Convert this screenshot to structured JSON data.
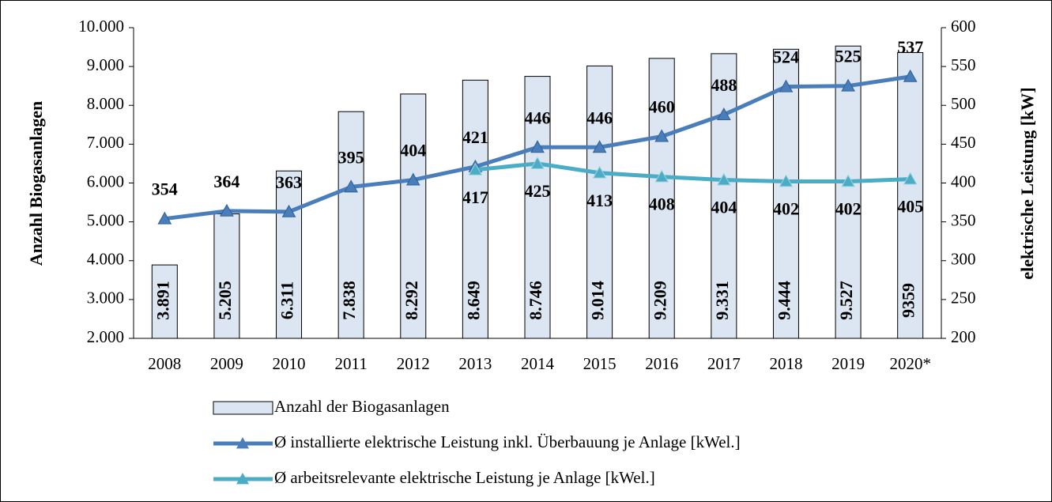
{
  "chart_data": {
    "type": "bar-line",
    "y_label": "Anzahl Biogasanlagen",
    "y2_label": "elektrische Leistung [kW]",
    "categories": [
      "2008",
      "2009",
      "2010",
      "2011",
      "2012",
      "2013",
      "2014",
      "2015",
      "2016",
      "2017",
      "2018",
      "2019",
      "2020*"
    ],
    "ylim": [
      2000,
      10000
    ],
    "yticks": [
      {
        "value": 2000,
        "label": "2.000"
      },
      {
        "value": 3000,
        "label": "3.000"
      },
      {
        "value": 4000,
        "label": "4.000"
      },
      {
        "value": 5000,
        "label": "5.000"
      },
      {
        "value": 6000,
        "label": "6.000"
      },
      {
        "value": 7000,
        "label": "7.000"
      },
      {
        "value": 8000,
        "label": "8.000"
      },
      {
        "value": 9000,
        "label": "9.000"
      },
      {
        "value": 10000,
        "label": "10.000"
      }
    ],
    "y2lim": [
      200,
      600
    ],
    "y2ticks": [
      200,
      250,
      300,
      350,
      400,
      450,
      500,
      550,
      600
    ],
    "series": [
      {
        "name": "Anzahl der Biogasanlagen",
        "type": "bar",
        "color": "#dce6f2",
        "values": [
          3891,
          5205,
          6311,
          7838,
          8292,
          8649,
          8746,
          9014,
          9209,
          9331,
          9444,
          9527,
          9359
        ],
        "value_labels": [
          "3.891",
          "5.205",
          "6.311",
          "7.838",
          "8.292",
          "8.649",
          "8.746",
          "9.014",
          "9.209",
          "9.331",
          "9.444",
          "9.527",
          "9359"
        ]
      },
      {
        "name": "Ø installierte elektrische Leistung inkl. Überbauung je Anlage [kWel.]",
        "type": "line",
        "axis": "y2",
        "color": "#4a7ebb",
        "values": [
          354,
          364,
          363,
          395,
          404,
          421,
          446,
          446,
          460,
          488,
          524,
          525,
          537
        ]
      },
      {
        "name": "Ø arbeitsrelevante elektrische Leistung je Anlage [kWel.]",
        "type": "line",
        "axis": "y2",
        "color": "#4bacc6",
        "values": [
          null,
          null,
          null,
          null,
          null,
          417,
          425,
          413,
          408,
          404,
          402,
          402,
          405
        ]
      }
    ]
  }
}
